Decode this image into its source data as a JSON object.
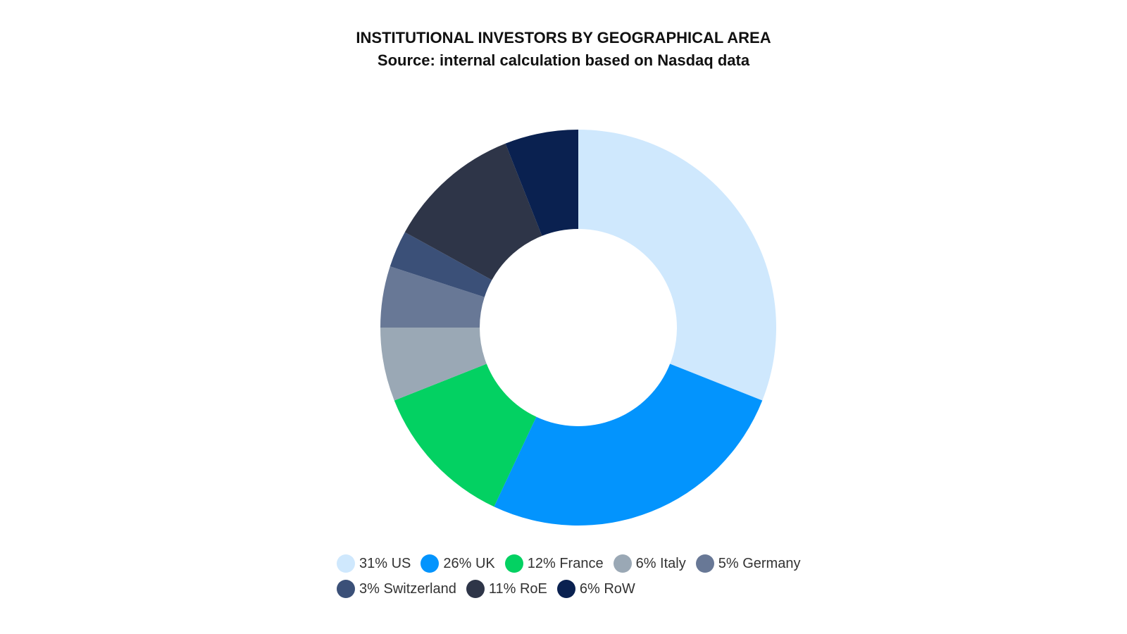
{
  "chart_data": {
    "type": "donut",
    "title": "INSTITUTIONAL INVESTORS BY GEOGRAPHICAL AREA",
    "subtitle": "Source: internal calculation based on Nasdaq data",
    "categories": [
      "31% US",
      "26% UK",
      "12% France",
      "6% Italy",
      "5% Germany",
      "3% Switzerland",
      "11% RoE",
      "6% RoW"
    ],
    "values": [
      31,
      26,
      12,
      6,
      5,
      3,
      11,
      6
    ],
    "colors": [
      "#cfe8fd",
      "#0394fd",
      "#03d162",
      "#9aa8b5",
      "#687896",
      "#3b5078",
      "#2e3548",
      "#0a2150"
    ]
  }
}
